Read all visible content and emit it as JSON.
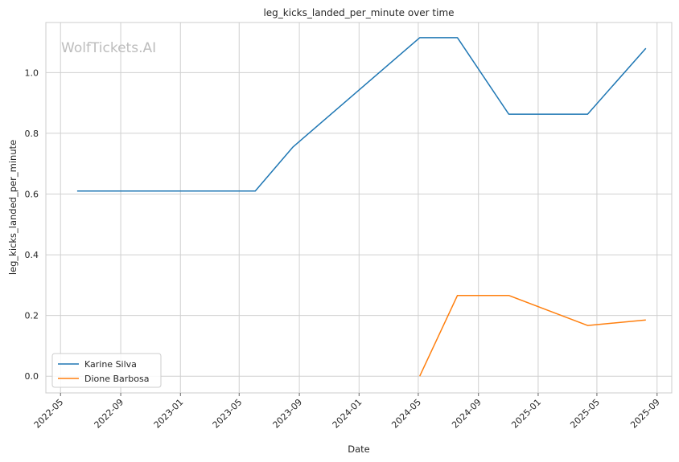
{
  "chart_data": {
    "type": "line",
    "title": "leg_kicks_landed_per_minute over time",
    "xlabel": "Date",
    "ylabel": "leg_kicks_landed_per_minute",
    "watermark": "WolfTickets.AI",
    "xlim": [
      "2022-04-01",
      "2025-10-01"
    ],
    "ylim": [
      -0.055,
      1.165
    ],
    "x_ticks": [
      "2022-05",
      "2022-09",
      "2023-01",
      "2023-05",
      "2023-09",
      "2024-01",
      "2024-05",
      "2024-09",
      "2025-01",
      "2025-05",
      "2025-09"
    ],
    "y_ticks": [
      "0.0",
      "0.2",
      "0.4",
      "0.6",
      "0.8",
      "1.0"
    ],
    "grid": true,
    "legend_position": "lower-left",
    "series": [
      {
        "name": "Karine Silva",
        "color": "#1f77b4",
        "x": [
          "2022-06-04",
          "2023-06-03",
          "2023-08-19",
          "2024-05-04",
          "2024-07-20",
          "2024-11-02",
          "2025-04-12",
          "2025-08-09"
        ],
        "y": [
          0.61,
          0.61,
          0.755,
          1.115,
          1.115,
          0.863,
          0.863,
          1.08
        ]
      },
      {
        "name": "Dione Barbosa",
        "color": "#ff7f0e",
        "x": [
          "2024-05-04",
          "2024-07-20",
          "2024-11-02",
          "2025-04-12",
          "2025-08-09"
        ],
        "y": [
          0.0,
          0.266,
          0.266,
          0.167,
          0.185
        ]
      }
    ]
  }
}
